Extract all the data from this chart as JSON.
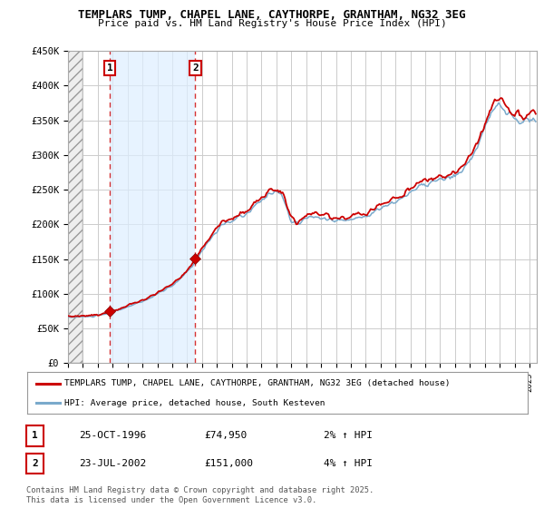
{
  "title1": "TEMPLARS TUMP, CHAPEL LANE, CAYTHORPE, GRANTHAM, NG32 3EG",
  "title2": "Price paid vs. HM Land Registry's House Price Index (HPI)",
  "ylim": [
    0,
    450000
  ],
  "yticks": [
    0,
    50000,
    100000,
    150000,
    200000,
    250000,
    300000,
    350000,
    400000,
    450000
  ],
  "ytick_labels": [
    "£0",
    "£50K",
    "£100K",
    "£150K",
    "£200K",
    "£250K",
    "£300K",
    "£350K",
    "£400K",
    "£450K"
  ],
  "xlim_start": 1994.0,
  "xlim_end": 2025.5,
  "legend_red": "TEMPLARS TUMP, CHAPEL LANE, CAYTHORPE, GRANTHAM, NG32 3EG (detached house)",
  "legend_blue": "HPI: Average price, detached house, South Kesteven",
  "sale1_x": 1996.82,
  "sale1_y": 74950,
  "sale1_label": "1",
  "sale1_date": "25-OCT-1996",
  "sale1_price": "£74,950",
  "sale1_hpi": "2% ↑ HPI",
  "sale2_x": 2002.55,
  "sale2_y": 151000,
  "sale2_label": "2",
  "sale2_date": "23-JUL-2002",
  "sale2_price": "£151,000",
  "sale2_hpi": "4% ↑ HPI",
  "line_color_red": "#cc0000",
  "line_color_blue": "#7aaacc",
  "bg_color": "#ffffff",
  "plot_bg_color": "#ffffff",
  "grid_color": "#cccccc",
  "shade_color": "#ddeeff",
  "footer": "Contains HM Land Registry data © Crown copyright and database right 2025.\nThis data is licensed under the Open Government Licence v3.0."
}
